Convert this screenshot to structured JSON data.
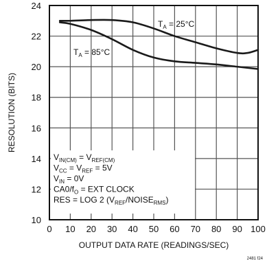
{
  "chart_data": {
    "type": "line",
    "xlabel": "OUTPUT DATA RATE (READINGS/SEC)",
    "ylabel": "RESOLUTION (BITS)",
    "xlim": [
      0,
      100
    ],
    "ylim": [
      10,
      24
    ],
    "x_ticks": [
      0,
      10,
      20,
      30,
      40,
      50,
      60,
      70,
      80,
      90,
      100
    ],
    "y_ticks": [
      10,
      12,
      14,
      16,
      18,
      20,
      22,
      24
    ],
    "grid": true,
    "series": [
      {
        "name": "T_A = 25°C",
        "label_main": "T",
        "label_sub": "A",
        "label_rest": " = 25°C",
        "x": [
          5,
          10,
          20,
          30,
          40,
          50,
          60,
          70,
          80,
          90,
          95,
          100
        ],
        "y": [
          23.0,
          23.0,
          23.05,
          23.05,
          22.9,
          22.5,
          22.0,
          21.6,
          21.2,
          20.9,
          20.9,
          21.1
        ]
      },
      {
        "name": "T_A = 85°C",
        "label_main": "T",
        "label_sub": "A",
        "label_rest": " = 85°C",
        "x": [
          5,
          10,
          20,
          30,
          40,
          50,
          60,
          70,
          80,
          90,
          100
        ],
        "y": [
          22.9,
          22.8,
          22.4,
          21.8,
          21.1,
          20.6,
          20.35,
          20.25,
          20.15,
          20.0,
          19.85
        ]
      }
    ],
    "annotations": [
      {
        "parts": [
          [
            "V"
          ],
          [
            "IN(CM)",
            "sub"
          ],
          [
            " = V"
          ],
          [
            "REF(CM)",
            "sub"
          ]
        ]
      },
      {
        "parts": [
          [
            "V"
          ],
          [
            "CC",
            "sub"
          ],
          [
            " = V"
          ],
          [
            "REF",
            "sub"
          ],
          [
            " = 5V"
          ]
        ]
      },
      {
        "parts": [
          [
            "V"
          ],
          [
            "IN",
            "sub"
          ],
          [
            " = 0V"
          ]
        ]
      },
      {
        "parts": [
          [
            "CA0/f"
          ],
          [
            "O",
            "sub"
          ],
          [
            " = EXT CLOCK"
          ]
        ]
      },
      {
        "parts": [
          [
            "RES = LOG 2 (V"
          ],
          [
            "REF",
            "sub"
          ],
          [
            "/NOISE"
          ],
          [
            "RMS",
            "sub"
          ],
          [
            ")"
          ]
        ]
      }
    ],
    "figure_code": "2481 f24"
  }
}
